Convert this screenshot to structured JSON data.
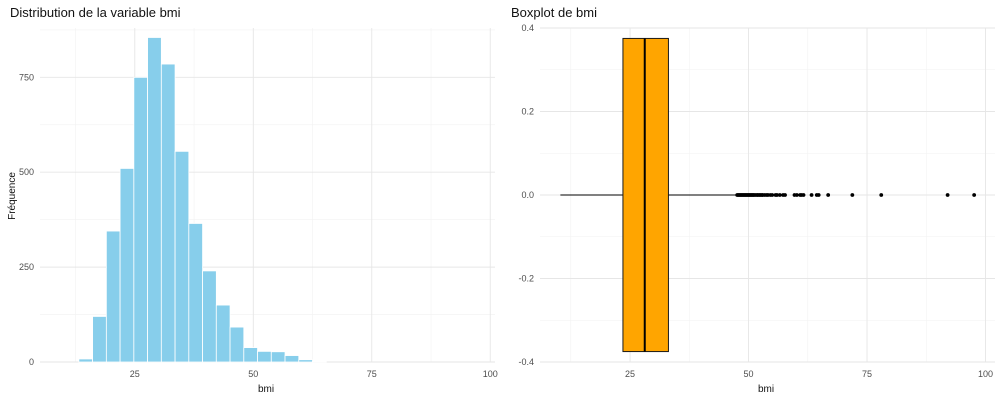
{
  "chart_data": [
    {
      "type": "bar",
      "title": "Distribution de la variable bmi",
      "xlabel": "bmi",
      "ylabel": "Fréquence",
      "xlim": [
        5,
        101
      ],
      "ylim": [
        0,
        880
      ],
      "x_ticks": [
        25,
        50,
        75,
        100
      ],
      "y_ticks": [
        0,
        250,
        500,
        750
      ],
      "grid": true,
      "bar_color": "#87CEEB",
      "bins": [
        {
          "x0": 13.2,
          "x1": 16.1,
          "value": 8
        },
        {
          "x0": 16.1,
          "x1": 19.0,
          "value": 120
        },
        {
          "x0": 19.0,
          "x1": 21.9,
          "value": 345
        },
        {
          "x0": 21.9,
          "x1": 24.8,
          "value": 510
        },
        {
          "x0": 24.8,
          "x1": 27.7,
          "value": 750
        },
        {
          "x0": 27.7,
          "x1": 30.6,
          "value": 855
        },
        {
          "x0": 30.6,
          "x1": 33.5,
          "value": 785
        },
        {
          "x0": 33.5,
          "x1": 36.4,
          "value": 555
        },
        {
          "x0": 36.4,
          "x1": 39.3,
          "value": 365
        },
        {
          "x0": 39.3,
          "x1": 42.2,
          "value": 240
        },
        {
          "x0": 42.2,
          "x1": 45.1,
          "value": 150
        },
        {
          "x0": 45.1,
          "x1": 48.0,
          "value": 92
        },
        {
          "x0": 48.0,
          "x1": 50.9,
          "value": 38
        },
        {
          "x0": 50.9,
          "x1": 53.8,
          "value": 28
        },
        {
          "x0": 53.8,
          "x1": 56.7,
          "value": 27
        },
        {
          "x0": 56.7,
          "x1": 59.6,
          "value": 17
        },
        {
          "x0": 59.6,
          "x1": 62.5,
          "value": 6
        },
        {
          "x0": 62.5,
          "x1": 65.4,
          "value": 2
        }
      ]
    },
    {
      "type": "boxplot",
      "title": "Boxplot de bmi",
      "xlabel": "bmi",
      "ylabel": "",
      "xlim": [
        6,
        102
      ],
      "ylim": [
        -0.4,
        0.4
      ],
      "x_ticks": [
        25,
        50,
        75,
        100
      ],
      "y_ticks": [
        "-0.4",
        "-0.2",
        "0.0",
        "0.2",
        "0.4"
      ],
      "grid": true,
      "box_color": "#FFA500",
      "box": {
        "whisker_low": 10.3,
        "q1": 23.5,
        "median": 28.1,
        "q3": 33.1,
        "whisker_high": 47.5,
        "y": 0.0,
        "half_height": 0.375
      },
      "outliers": [
        47.6,
        47.8,
        48.0,
        48.2,
        48.4,
        48.6,
        48.8,
        49.0,
        49.2,
        49.4,
        49.6,
        49.8,
        50.0,
        50.2,
        50.4,
        50.6,
        50.8,
        51.0,
        51.2,
        51.5,
        51.8,
        52.0,
        52.3,
        52.5,
        52.8,
        53.0,
        53.4,
        53.8,
        54.1,
        54.6,
        55.0,
        55.7,
        56.0,
        56.6,
        57.3,
        57.7,
        59.7,
        60.2,
        60.9,
        61.2,
        61.6,
        63.3,
        64.4,
        64.8,
        66.8,
        71.9,
        78.0,
        92.0,
        97.6
      ]
    }
  ]
}
